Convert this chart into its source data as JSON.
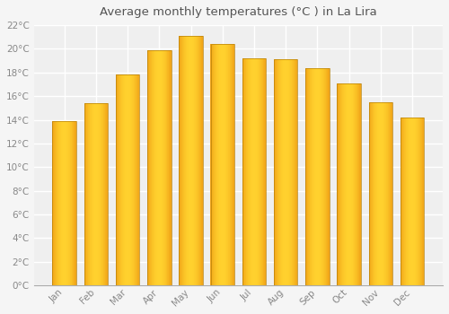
{
  "title": "Average monthly temperatures (°C ) in La Lira",
  "months": [
    "Jan",
    "Feb",
    "Mar",
    "Apr",
    "May",
    "Jun",
    "Jul",
    "Aug",
    "Sep",
    "Oct",
    "Nov",
    "Dec"
  ],
  "values": [
    13.9,
    15.4,
    17.8,
    19.9,
    21.1,
    20.4,
    19.2,
    19.1,
    18.4,
    17.1,
    15.5,
    14.2
  ],
  "bar_color_left": "#E8890A",
  "bar_color_center": "#FFD040",
  "bar_color_right": "#E8890A",
  "bar_edge_color": "#C07000",
  "background_color": "#F5F5F5",
  "plot_bg_color": "#EFEFEF",
  "grid_color": "#FFFFFF",
  "tick_label_color": "#888888",
  "title_color": "#555555",
  "ylim": [
    0,
    22
  ],
  "ytick_step": 2,
  "bar_width": 0.75,
  "figsize": [
    5.0,
    3.5
  ],
  "dpi": 100
}
